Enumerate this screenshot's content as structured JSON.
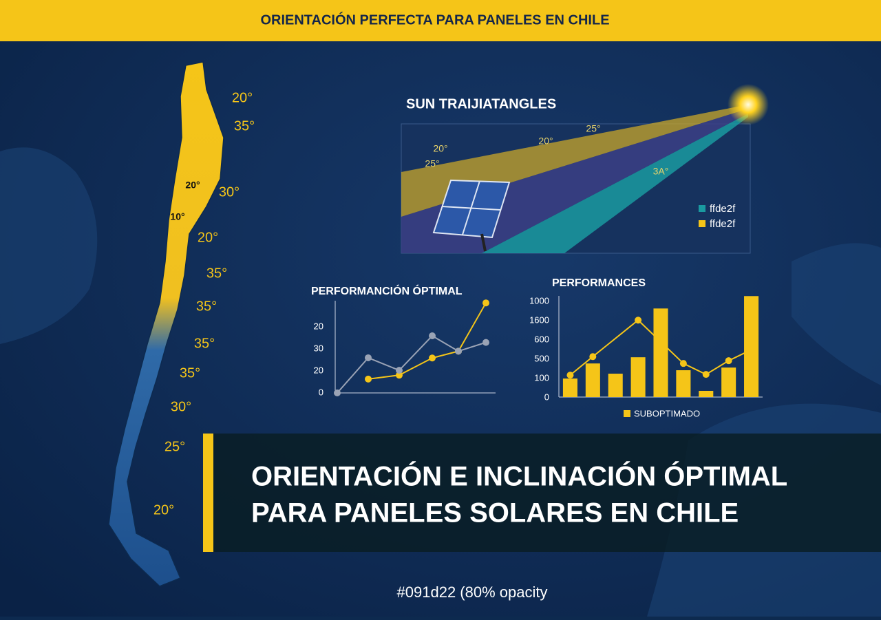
{
  "header": {
    "title": "ORIENTACIÓN PERFECTA PARA PANELES EN CHILE"
  },
  "map": {
    "angle_labels": [
      "20°",
      "35°",
      "20°",
      "30°",
      "10°",
      "20°",
      "35°",
      "35°",
      "35°",
      "35°",
      "30°",
      "25°",
      "20°"
    ]
  },
  "sun_diagram": {
    "title": "SUN TRAIJIATANGLES",
    "angle_labels": [
      "20°",
      "25°",
      "20°",
      "25°",
      "3A°"
    ],
    "legend": [
      {
        "name": "ffde2f",
        "color": "#1a9aa0"
      },
      {
        "name": "ffde2f",
        "color": "#f5c518"
      }
    ]
  },
  "chart_data": [
    {
      "type": "line",
      "title": "PERFORMANCIÓN  ÓPTIMAL",
      "y_axis_labels": [
        "20",
        "30",
        "20",
        "0"
      ],
      "ylim": [
        0,
        42
      ],
      "categories": [
        null,
        null,
        null,
        null,
        null,
        null
      ],
      "series": [
        {
          "color": "#f5c518",
          "values": [
            null,
            6.3,
            8.1,
            15.9,
            19,
            41
          ]
        },
        {
          "color": "#9aa3b5",
          "values": [
            0,
            16,
            10.3,
            26,
            19,
            23
          ]
        }
      ]
    },
    {
      "type": "bar",
      "title": "PERFORMANCES",
      "y_axis_labels": [
        "1000",
        "1600",
        "600",
        "500",
        "100",
        "0"
      ],
      "ylim": [
        0,
        1060
      ],
      "categories": [
        null,
        null,
        null,
        null,
        null,
        null,
        null,
        null,
        null
      ],
      "series": [
        {
          "name": "SUBOPTIMADO",
          "color": "#f5c518",
          "values": [
            194,
            352,
            245,
            417,
            928,
            281,
            65,
            309,
            1058
          ]
        }
      ],
      "line": {
        "color": "#f5c518",
        "values": [
          230,
          424,
          null,
          806,
          null,
          352,
          237,
          381,
          496
        ]
      }
    }
  ],
  "banner": {
    "lines": [
      "ORIENTACIÓN E INCLINACIÓN ÓPTIMAL",
      "PARA PANELES SOLARES EN CHILE"
    ]
  },
  "footer": {
    "note": "#091d22 (80% opacity"
  }
}
